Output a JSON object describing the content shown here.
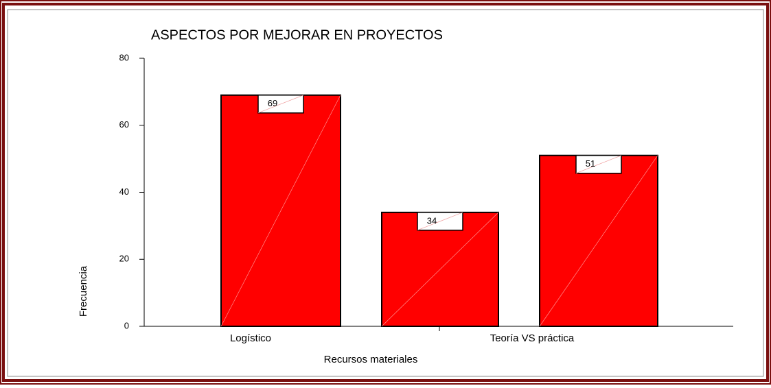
{
  "chart_data": {
    "type": "bar",
    "title": "ASPECTOS POR MEJORAR EN PROYECTOS",
    "x_label": "Recursos materiales",
    "y_label": "Frecuencia",
    "categories": [
      "Logístico",
      null,
      "Teoría VS práctica"
    ],
    "values": [
      69,
      34,
      51
    ],
    "color": "#ff0000",
    "ylim": [
      0,
      80
    ],
    "yticks": [
      0,
      20,
      40,
      60,
      80
    ]
  }
}
